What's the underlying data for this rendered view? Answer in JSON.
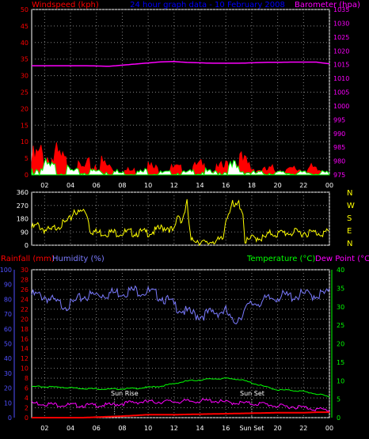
{
  "header": {
    "windspeed_label": "Windspeed (kph)",
    "title": "24 hour graph data - 10 February 2008",
    "barometer_label": "Barometer (hpa)"
  },
  "colors": {
    "background": "#000000",
    "axis": "#ffffff",
    "grid": "#808080",
    "wind": "#ff0000",
    "wind_avg": "#00ff00",
    "wind_fill": "#ffffff",
    "barometer": "#ff00ff",
    "direction": "#ffff00",
    "rainfall": "#ff0000",
    "humidity": "#7b7bff",
    "temperature": "#00ff00",
    "dewpoint": "#ff00ff",
    "title_blue": "#0000ff",
    "left_axis_red": "#ff0000",
    "left_axis_blue": "#5050ff"
  },
  "bottom_header": {
    "rainfall_label": "Rainfall (mm)",
    "humidity_label": "Humidity (%)",
    "temperature_label": "Temperature (°C)",
    "dewpoint_label": "Dew Point (°C)"
  },
  "direction_labels": [
    "N",
    "W",
    "S",
    "E",
    "N"
  ],
  "annotations": {
    "sun_rise": "Sun Rise",
    "sun_set": "Sun Set"
  },
  "chart_data": [
    {
      "type": "line",
      "title": "24 hour graph data - 10 February 2008",
      "x_ticks": [
        "02",
        "04",
        "06",
        "08",
        "10",
        "12",
        "14",
        "16",
        "18",
        "20",
        "22",
        "00"
      ],
      "xlim": [
        1,
        24
      ],
      "left_axis": {
        "label": "Windspeed (kph)",
        "ticks": [
          0,
          5,
          10,
          15,
          20,
          25,
          30,
          35,
          40,
          45,
          50
        ],
        "ylim": [
          0,
          50
        ]
      },
      "right_axis": {
        "label": "Barometer (hpa)",
        "ticks": [
          975,
          980,
          985,
          990,
          995,
          1000,
          1005,
          1010,
          1015,
          1020,
          1025,
          1030,
          1035
        ],
        "ylim": [
          975,
          1035
        ]
      },
      "series": [
        {
          "name": "Barometer (hpa)",
          "axis": "right",
          "x": [
            1,
            3,
            5,
            7,
            9,
            11,
            12,
            13,
            15,
            17,
            19,
            21,
            23,
            24
          ],
          "values": [
            1014.6,
            1014.6,
            1014.6,
            1014.4,
            1015.2,
            1016.0,
            1016.1,
            1015.8,
            1015.5,
            1015.5,
            1015.8,
            1015.9,
            1015.9,
            1015.3
          ]
        },
        {
          "name": "Wind gust (kph)",
          "axis": "left",
          "x": [
            1,
            2,
            3,
            4,
            5,
            6,
            7,
            8,
            9,
            10,
            11,
            12,
            13,
            14,
            15,
            16,
            16.5,
            17,
            17.5,
            18,
            19,
            20,
            21,
            22,
            23,
            24
          ],
          "values": [
            7,
            10,
            8,
            4,
            3,
            6,
            4,
            2,
            2,
            4,
            2,
            3,
            2,
            4,
            2,
            4,
            9,
            7,
            5,
            4,
            2,
            3,
            2,
            4,
            2,
            3
          ]
        },
        {
          "name": "Wind average (kph)",
          "axis": "left",
          "x": [
            1,
            2,
            3,
            4,
            5,
            6,
            7,
            8,
            9,
            10,
            11,
            12,
            13,
            14,
            15,
            16,
            16.5,
            17,
            17.5,
            18,
            19,
            20,
            21,
            22,
            23,
            24
          ],
          "values": [
            3,
            4,
            3,
            2,
            1,
            2,
            2,
            1,
            1,
            2,
            1,
            1,
            1,
            2,
            1,
            2,
            4,
            3,
            2,
            1,
            1,
            1,
            1,
            1,
            1,
            1
          ]
        }
      ]
    },
    {
      "type": "line",
      "x_ticks": [
        "02",
        "04",
        "06",
        "08",
        "10",
        "12",
        "14",
        "16",
        "18",
        "20",
        "22",
        "00"
      ],
      "xlim": [
        1,
        24
      ],
      "left_axis": {
        "ticks": [
          0,
          90,
          180,
          270,
          360
        ],
        "ylim": [
          0,
          360
        ]
      },
      "right_axis": {
        "labels": [
          "N",
          "W",
          "S",
          "E",
          "N"
        ]
      },
      "series": [
        {
          "name": "Wind direction (°)",
          "x": [
            1,
            1.5,
            2,
            2.5,
            3,
            3.5,
            4,
            4.3,
            4.6,
            5,
            5.3,
            5.5,
            6,
            8,
            10,
            10.5,
            11,
            11.5,
            12,
            12.3,
            12.6,
            13,
            13.3,
            13.6,
            14,
            14.5,
            15,
            15.5,
            15.8,
            16,
            16.5,
            16.6,
            17,
            17.3,
            17.5,
            18,
            18.5,
            19,
            19.5,
            20,
            20.5,
            21,
            22,
            23,
            24
          ],
          "values": [
            130,
            150,
            120,
            110,
            150,
            160,
            190,
            260,
            230,
            250,
            230,
            120,
            100,
            100,
            100,
            110,
            130,
            140,
            100,
            230,
            180,
            300,
            30,
            60,
            40,
            20,
            50,
            40,
            60,
            200,
            300,
            260,
            300,
            250,
            30,
            60,
            70,
            60,
            100,
            90,
            100,
            100,
            100,
            100,
            100
          ]
        }
      ]
    },
    {
      "type": "line",
      "x_ticks": [
        "02",
        "04",
        "06",
        "08",
        "10",
        "12",
        "14",
        "16",
        "Sun Set",
        "20",
        "22",
        "00"
      ],
      "xlim": [
        1,
        24
      ],
      "axes": {
        "humidity": {
          "label": "Humidity (%)",
          "ticks": [
            0,
            10,
            20,
            30,
            40,
            50,
            60,
            70,
            80,
            90,
            100
          ],
          "ylim": [
            0,
            100
          ]
        },
        "rainfall": {
          "label": "Rainfall (mm)",
          "ticks": [
            0,
            2,
            4,
            6,
            8,
            10,
            12,
            14,
            16,
            18,
            20,
            22,
            24,
            26,
            28,
            30
          ],
          "ylim": [
            0,
            30
          ]
        },
        "temperature": {
          "label": "Temperature (°C)",
          "ticks": [
            0,
            5,
            10,
            15,
            20,
            25,
            30,
            35,
            40
          ],
          "ylim": [
            0,
            40
          ]
        }
      },
      "series": [
        {
          "name": "Humidity (%)",
          "axis": "humidity",
          "x": [
            1,
            2,
            3,
            4,
            5,
            6,
            7,
            8,
            9,
            10,
            11,
            12,
            13,
            14,
            15,
            16,
            16.5,
            17,
            18,
            19,
            20,
            21,
            22,
            23,
            24
          ],
          "values": [
            85,
            84,
            79,
            78,
            84,
            85,
            86,
            87,
            88,
            87,
            84,
            78,
            73,
            71,
            73,
            74,
            66,
            70,
            79,
            81,
            84,
            84,
            85,
            85,
            86
          ]
        },
        {
          "name": "Temperature (°C)",
          "axis": "temperature",
          "x": [
            1,
            3,
            5,
            7,
            9,
            11,
            13,
            15,
            16,
            17,
            18,
            19,
            20,
            21,
            22,
            23,
            24
          ],
          "values": [
            8.5,
            8.4,
            8.0,
            7.8,
            8.0,
            8.6,
            10.0,
            10.6,
            10.7,
            10.5,
            9.5,
            8.5,
            7.6,
            7.5,
            7.2,
            6.5,
            5.8
          ]
        },
        {
          "name": "Dew Point (°C)",
          "axis": "temperature",
          "x": [
            1,
            3,
            5,
            7,
            9,
            11,
            13,
            15,
            16,
            17,
            18,
            19,
            20,
            21,
            22,
            23,
            24
          ],
          "values": [
            4.3,
            3.8,
            3.6,
            3.7,
            4.5,
            4.6,
            4.7,
            4.9,
            4.4,
            4.3,
            4.1,
            4.0,
            3.4,
            3.3,
            3.1,
            2.6,
            2.3
          ]
        },
        {
          "name": "Rainfall (mm)",
          "axis": "rainfall",
          "x": [
            1,
            5,
            8,
            10,
            12,
            14,
            16,
            18,
            20,
            22,
            23,
            24
          ],
          "values": [
            0,
            0,
            0.3,
            0.6,
            0.6,
            0.7,
            0.8,
            0.9,
            1.0,
            1.0,
            1.1,
            1.1
          ]
        }
      ],
      "markers": [
        {
          "label": "Sun Rise",
          "x": 7.4
        },
        {
          "label": "Sun Set",
          "x": 18.0
        }
      ]
    }
  ]
}
